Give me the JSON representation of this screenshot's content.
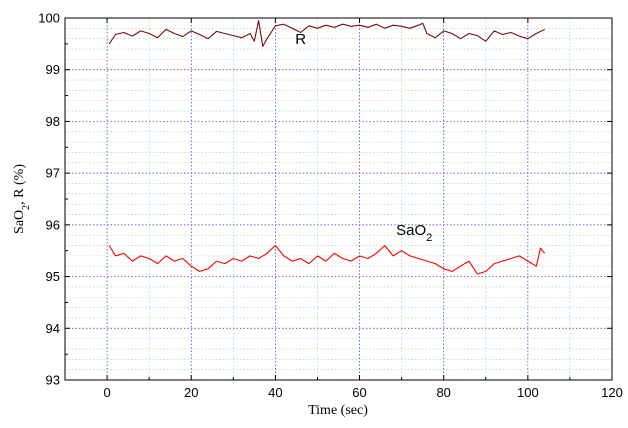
{
  "chart_data": {
    "type": "line",
    "xlabel": "Time (sec)",
    "ylabel": "SaO2, R (%)",
    "ylabel_parts": {
      "main": "SaO",
      "sub": "2",
      "rest": ", R (%)"
    },
    "xlim": [
      -10,
      120
    ],
    "ylim": [
      93,
      100
    ],
    "x_ticks": [
      0,
      20,
      40,
      60,
      80,
      100,
      120
    ],
    "y_ticks": [
      93,
      94,
      95,
      96,
      97,
      98,
      99,
      100
    ],
    "x_tick_labels": [
      "0",
      "20",
      "40",
      "60",
      "80",
      "100",
      "120"
    ],
    "y_tick_labels": [
      "93",
      "94",
      "95",
      "96",
      "97",
      "98",
      "99",
      "100"
    ],
    "grid": true,
    "series": [
      {
        "name": "R",
        "color": "#7a0c0c",
        "x": [
          0.5,
          2,
          4,
          6,
          8,
          10,
          12,
          14,
          16,
          18,
          20,
          22,
          24,
          26,
          28,
          30,
          32,
          34,
          35,
          36,
          37,
          38,
          40,
          42,
          44,
          46,
          48,
          50,
          52,
          54,
          56,
          58,
          60,
          62,
          64,
          66,
          68,
          70,
          72,
          74,
          75,
          76,
          78,
          80,
          82,
          84,
          86,
          88,
          90,
          92,
          94,
          96,
          98,
          100,
          102,
          104
        ],
        "y": [
          99.5,
          99.68,
          99.72,
          99.65,
          99.75,
          99.7,
          99.62,
          99.78,
          99.7,
          99.64,
          99.75,
          99.68,
          99.6,
          99.74,
          99.7,
          99.66,
          99.62,
          99.7,
          99.55,
          99.95,
          99.45,
          99.6,
          99.85,
          99.88,
          99.8,
          99.72,
          99.85,
          99.8,
          99.86,
          99.82,
          99.88,
          99.84,
          99.86,
          99.82,
          99.88,
          99.8,
          99.86,
          99.84,
          99.8,
          99.86,
          99.9,
          99.7,
          99.62,
          99.75,
          99.7,
          99.6,
          99.7,
          99.66,
          99.55,
          99.75,
          99.68,
          99.72,
          99.65,
          99.6,
          99.7,
          99.78
        ]
      },
      {
        "name": "SaO2",
        "color": "#ff0000",
        "x": [
          0.5,
          2,
          4,
          6,
          8,
          10,
          12,
          14,
          16,
          18,
          20,
          22,
          24,
          26,
          28,
          30,
          32,
          34,
          36,
          38,
          40,
          42,
          44,
          46,
          48,
          50,
          52,
          54,
          56,
          58,
          60,
          62,
          64,
          66,
          68,
          70,
          72,
          74,
          76,
          78,
          80,
          82,
          84,
          86,
          88,
          90,
          92,
          94,
          96,
          98,
          100,
          102,
          103,
          104
        ],
        "y": [
          95.6,
          95.4,
          95.45,
          95.3,
          95.4,
          95.35,
          95.25,
          95.4,
          95.3,
          95.35,
          95.2,
          95.1,
          95.15,
          95.3,
          95.25,
          95.35,
          95.3,
          95.4,
          95.35,
          95.45,
          95.6,
          95.4,
          95.3,
          95.35,
          95.25,
          95.4,
          95.3,
          95.45,
          95.35,
          95.3,
          95.4,
          95.35,
          95.45,
          95.6,
          95.4,
          95.5,
          95.4,
          95.35,
          95.3,
          95.25,
          95.15,
          95.1,
          95.2,
          95.3,
          95.05,
          95.1,
          95.25,
          95.3,
          95.35,
          95.4,
          95.3,
          95.2,
          95.55,
          95.45
        ]
      }
    ],
    "annotations": [
      {
        "text": "R",
        "x": 46,
        "y": 99.5
      },
      {
        "text": "SaO",
        "sub": "2",
        "x": 73,
        "y": 95.8
      }
    ]
  }
}
